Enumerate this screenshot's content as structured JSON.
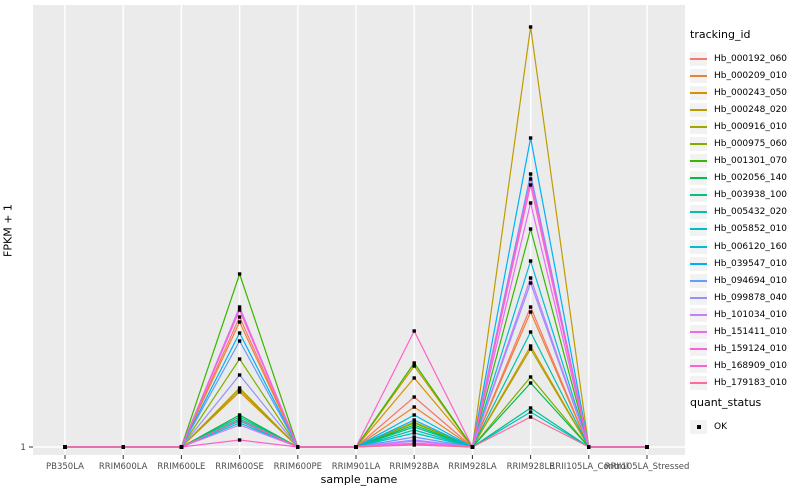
{
  "chart_data": {
    "type": "line",
    "title": "",
    "xlabel": "sample_name",
    "ylabel": "FPKM + 1",
    "categories": [
      "PB350LA",
      "RRIM600LA",
      "RRIM600LE",
      "RRIM600SE",
      "RRIM600PE",
      "RRIM901LA",
      "RRIM928BA",
      "RRIM928LA",
      "RRIM928LE",
      "RRII105LA_Control",
      "RRII105LA_Stressed"
    ],
    "y_tick_labels": [
      "1"
    ],
    "ylim": [
      1,
      443
    ],
    "grid": "white major gridlines on gray panel",
    "legend_position": "right",
    "legend_title": "tracking_id",
    "marker_legend_title": "quant_status",
    "marker_legend_label": "OK",
    "marker_color": "#000000",
    "series": [
      {
        "name": "Hb_000192_060",
        "color": "#F8766D",
        "values": [
          1,
          1,
          1,
          131,
          1,
          1,
          51,
          1,
          141,
          1,
          1
        ]
      },
      {
        "name": "Hb_000209_010",
        "color": "#EA8331",
        "values": [
          1,
          1,
          1,
          126,
          1,
          1,
          41,
          1,
          136,
          1,
          1
        ]
      },
      {
        "name": "Hb_000243_050",
        "color": "#D89000",
        "values": [
          1,
          1,
          1,
          56,
          1,
          1,
          70,
          1,
          102,
          1,
          1
        ]
      },
      {
        "name": "Hb_000248_020",
        "color": "#C09B00",
        "values": [
          1,
          1,
          1,
          58,
          1,
          1,
          82,
          1,
          421,
          1,
          1
        ]
      },
      {
        "name": "Hb_000916_010",
        "color": "#A3A500",
        "values": [
          1,
          1,
          1,
          60,
          1,
          1,
          26,
          1,
          99,
          1,
          1
        ]
      },
      {
        "name": "Hb_000975_060",
        "color": "#7CAE00",
        "values": [
          1,
          1,
          1,
          89,
          1,
          1,
          25,
          1,
          71,
          1,
          1
        ]
      },
      {
        "name": "Hb_001301_070",
        "color": "#39B600",
        "values": [
          1,
          1,
          1,
          174,
          1,
          1,
          85,
          1,
          219,
          1,
          1
        ]
      },
      {
        "name": "Hb_002056_140",
        "color": "#00BB4E",
        "values": [
          1,
          1,
          1,
          33,
          1,
          1,
          23,
          1,
          65,
          1,
          1
        ]
      },
      {
        "name": "Hb_003938_100",
        "color": "#00C087",
        "values": [
          1,
          1,
          1,
          31,
          1,
          1,
          21,
          1,
          40,
          1,
          1
        ]
      },
      {
        "name": "Hb_005432_020",
        "color": "#00C0AF",
        "values": [
          1,
          1,
          1,
          29,
          1,
          1,
          18,
          1,
          116,
          1,
          1
        ]
      },
      {
        "name": "Hb_005852_010",
        "color": "#00BFC4",
        "values": [
          1,
          1,
          1,
          27,
          1,
          1,
          15,
          1,
          36,
          1,
          1
        ]
      },
      {
        "name": "Hb_006120_160",
        "color": "#00BBDA",
        "values": [
          1,
          1,
          1,
          25,
          1,
          1,
          33,
          1,
          187,
          1,
          1
        ]
      },
      {
        "name": "Hb_039547_010",
        "color": "#00B0F6",
        "values": [
          1,
          1,
          1,
          115,
          1,
          1,
          28,
          1,
          310,
          1,
          1
        ]
      },
      {
        "name": "Hb_094694_010",
        "color": "#619CFF",
        "values": [
          1,
          1,
          1,
          107,
          1,
          1,
          11,
          1,
          274,
          1,
          1
        ]
      },
      {
        "name": "Hb_099878_040",
        "color": "#9590FF",
        "values": [
          1,
          1,
          1,
          73,
          1,
          1,
          8,
          1,
          165,
          1,
          1
        ]
      },
      {
        "name": "Hb_101034_010",
        "color": "#C77CFF",
        "values": [
          1,
          1,
          1,
          23,
          1,
          1,
          7,
          1,
          170,
          1,
          1
        ]
      },
      {
        "name": "Hb_151411_010",
        "color": "#E76BF3",
        "values": [
          1,
          1,
          1,
          141,
          1,
          1,
          5,
          1,
          245,
          1,
          1
        ]
      },
      {
        "name": "Hb_159124_010",
        "color": "#FA62DB",
        "values": [
          1,
          1,
          1,
          138,
          1,
          1,
          4,
          1,
          269,
          1,
          1
        ]
      },
      {
        "name": "Hb_168909_010",
        "color": "#FF61CC",
        "values": [
          1,
          1,
          1,
          8,
          1,
          1,
          117,
          1,
          263,
          1,
          1
        ]
      },
      {
        "name": "Hb_179183_010",
        "color": "#FF6A98",
        "values": [
          1,
          1,
          1,
          28,
          1,
          1,
          3,
          1,
          31,
          1,
          1
        ]
      }
    ]
  },
  "style": {
    "panel_bg": "#EBEBEB",
    "grid_color": "#FFFFFF",
    "tick_color": "#333333",
    "axis_text_color": "#4D4D4D",
    "legend_key_bg": "#F2F2F2"
  }
}
